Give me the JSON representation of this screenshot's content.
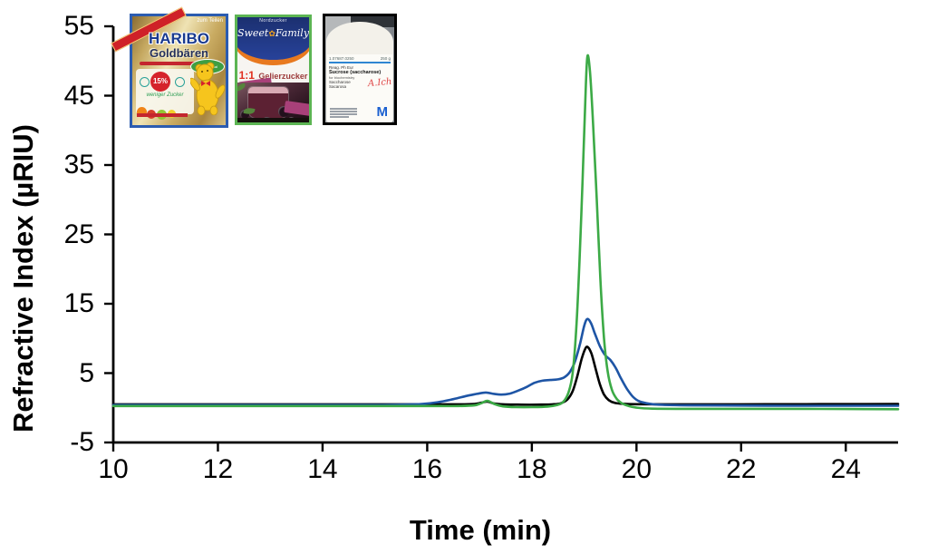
{
  "chart_data": {
    "type": "line",
    "title": "",
    "xlabel": "Time (min)",
    "ylabel": "Refractive Index (µRIU)",
    "xlim": [
      10,
      25
    ],
    "ylim": [
      -5,
      55
    ],
    "x_ticks": [
      10,
      12,
      14,
      16,
      18,
      20,
      22,
      24
    ],
    "y_ticks": [
      55,
      45,
      35,
      25,
      15,
      5,
      -5
    ],
    "grid": false,
    "legend_position": "inset product photos, top-left",
    "series": [
      {
        "name": "HARIBO Goldbären (gummy bears)",
        "color": "#1e55a5",
        "z": 2,
        "peak_time_min": 19.06,
        "peak_uriu": 12.8,
        "points": [
          [
            10,
            0.4
          ],
          [
            11,
            0.4
          ],
          [
            12,
            0.4
          ],
          [
            13,
            0.4
          ],
          [
            14,
            0.4
          ],
          [
            15,
            0.4
          ],
          [
            15.5,
            0.45
          ],
          [
            15.9,
            0.55
          ],
          [
            16.2,
            0.8
          ],
          [
            16.5,
            1.25
          ],
          [
            16.75,
            1.7
          ],
          [
            16.95,
            2.0
          ],
          [
            17.12,
            2.2
          ],
          [
            17.28,
            2.0
          ],
          [
            17.42,
            1.9
          ],
          [
            17.58,
            2.05
          ],
          [
            17.75,
            2.5
          ],
          [
            17.9,
            3.0
          ],
          [
            18.05,
            3.6
          ],
          [
            18.2,
            3.9
          ],
          [
            18.35,
            4.0
          ],
          [
            18.5,
            4.1
          ],
          [
            18.62,
            4.4
          ],
          [
            18.73,
            5.2
          ],
          [
            18.83,
            6.8
          ],
          [
            18.92,
            9.2
          ],
          [
            19.0,
            11.8
          ],
          [
            19.06,
            12.8
          ],
          [
            19.13,
            12.2
          ],
          [
            19.2,
            10.8
          ],
          [
            19.3,
            8.9
          ],
          [
            19.4,
            7.6
          ],
          [
            19.5,
            6.9
          ],
          [
            19.6,
            5.8
          ],
          [
            19.7,
            4.3
          ],
          [
            19.82,
            2.7
          ],
          [
            19.93,
            1.6
          ],
          [
            20.05,
            0.95
          ],
          [
            20.25,
            0.58
          ],
          [
            20.5,
            0.42
          ],
          [
            21,
            0.35
          ],
          [
            22,
            0.32
          ],
          [
            23,
            0.3
          ],
          [
            24,
            0.3
          ],
          [
            25,
            0.3
          ]
        ]
      },
      {
        "name": "SweetFamily 1:1 Gelierzucker (gelling sugar)",
        "color": "#3caa46",
        "z": 3,
        "peak_time_min": 19.06,
        "peak_uriu": 50.6,
        "points": [
          [
            10,
            0.25
          ],
          [
            11,
            0.25
          ],
          [
            12,
            0.25
          ],
          [
            13,
            0.25
          ],
          [
            14,
            0.25
          ],
          [
            15,
            0.25
          ],
          [
            16,
            0.25
          ],
          [
            16.6,
            0.25
          ],
          [
            16.9,
            0.35
          ],
          [
            17.03,
            0.65
          ],
          [
            17.15,
            1.0
          ],
          [
            17.28,
            0.55
          ],
          [
            17.45,
            0.2
          ],
          [
            17.7,
            0.1
          ],
          [
            18.0,
            0.1
          ],
          [
            18.3,
            0.18
          ],
          [
            18.48,
            0.4
          ],
          [
            18.6,
            0.85
          ],
          [
            18.7,
            2.2
          ],
          [
            18.78,
            5.0
          ],
          [
            18.85,
            11.5
          ],
          [
            18.91,
            21
          ],
          [
            18.97,
            33
          ],
          [
            19.02,
            44
          ],
          [
            19.06,
            50.6
          ],
          [
            19.11,
            48.5
          ],
          [
            19.17,
            41
          ],
          [
            19.24,
            30
          ],
          [
            19.31,
            18.5
          ],
          [
            19.38,
            10
          ],
          [
            19.45,
            5.2
          ],
          [
            19.53,
            2.6
          ],
          [
            19.62,
            1.3
          ],
          [
            19.72,
            0.65
          ],
          [
            19.85,
            0.25
          ],
          [
            20.0,
            0.02
          ],
          [
            20.3,
            -0.12
          ],
          [
            21,
            -0.15
          ],
          [
            22,
            -0.15
          ],
          [
            23,
            -0.15
          ],
          [
            24,
            -0.18
          ],
          [
            25,
            -0.2
          ]
        ]
      },
      {
        "name": "Merck sucrose (saccharose)",
        "color": "#000000",
        "z": 1,
        "peak_time_min": 19.07,
        "peak_uriu": 8.75,
        "points": [
          [
            10,
            0.5
          ],
          [
            11,
            0.5
          ],
          [
            12,
            0.5
          ],
          [
            13,
            0.5
          ],
          [
            14,
            0.5
          ],
          [
            15,
            0.5
          ],
          [
            16,
            0.5
          ],
          [
            16.6,
            0.5
          ],
          [
            16.9,
            0.55
          ],
          [
            17.03,
            0.72
          ],
          [
            17.15,
            0.88
          ],
          [
            17.28,
            0.62
          ],
          [
            17.45,
            0.5
          ],
          [
            17.8,
            0.45
          ],
          [
            18.1,
            0.45
          ],
          [
            18.4,
            0.5
          ],
          [
            18.55,
            0.65
          ],
          [
            18.68,
            1.2
          ],
          [
            18.78,
            2.4
          ],
          [
            18.87,
            4.6
          ],
          [
            18.95,
            7.0
          ],
          [
            19.02,
            8.5
          ],
          [
            19.07,
            8.75
          ],
          [
            19.14,
            7.8
          ],
          [
            19.22,
            5.6
          ],
          [
            19.3,
            3.4
          ],
          [
            19.38,
            1.9
          ],
          [
            19.47,
            1.1
          ],
          [
            19.58,
            0.72
          ],
          [
            19.75,
            0.58
          ],
          [
            20,
            0.52
          ],
          [
            21,
            0.5
          ],
          [
            22,
            0.5
          ],
          [
            23,
            0.52
          ],
          [
            24,
            0.53
          ],
          [
            25,
            0.55
          ]
        ]
      }
    ]
  },
  "axes": {
    "xlabel": "Time (min)",
    "ylabel": "Refractive Index (µRIU)"
  },
  "products": {
    "haribo": {
      "brand": "HARIBO",
      "product": "Goldbären",
      "share_text": "zum Teilen",
      "badge": "15%",
      "claim": "weniger Zucker",
      "original_badge": "Das Original",
      "frame_color": "#2b5cb0"
    },
    "sweetfamily": {
      "brand": "Nordzucker",
      "logo_sweet": "Sweet",
      "logo_family": "Family",
      "ratio": "1:1",
      "product": "Gelierzucker",
      "frame_color": "#5cb553"
    },
    "merck": {
      "catalog": "1.07687.0250",
      "amount": "250 g",
      "grade": "Reag. Ph Eur",
      "product": "Sucrose (saccharose)",
      "use": "for biochemistry",
      "alt1": "Saccharose",
      "alt2": "Sacarosa",
      "handwriting": "A.Ich",
      "logo": "M",
      "frame_color": "#000000"
    }
  }
}
